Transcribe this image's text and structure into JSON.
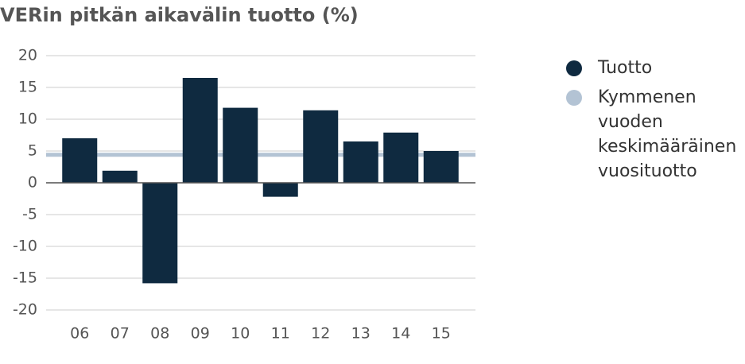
{
  "chart_data": {
    "type": "bar",
    "title": "VERin pitkän aikavälin tuotto (%)",
    "categories": [
      "06",
      "07",
      "08",
      "09",
      "10",
      "11",
      "12",
      "13",
      "14",
      "15"
    ],
    "series": [
      {
        "name": "Tuotto",
        "color": "#0f2a40",
        "values": [
          7.0,
          1.9,
          -15.8,
          16.5,
          11.8,
          -2.2,
          11.4,
          6.5,
          7.9,
          5.0
        ]
      }
    ],
    "reference": {
      "name": "Kymmenen vuoden keskimääräinen vuosituotto",
      "color": "#b3c3d4",
      "value": 4.4
    },
    "ylim": [
      -20,
      20
    ],
    "yticks": [
      -20,
      -15,
      -10,
      -5,
      0,
      5,
      10,
      15,
      20
    ],
    "grid": true
  }
}
